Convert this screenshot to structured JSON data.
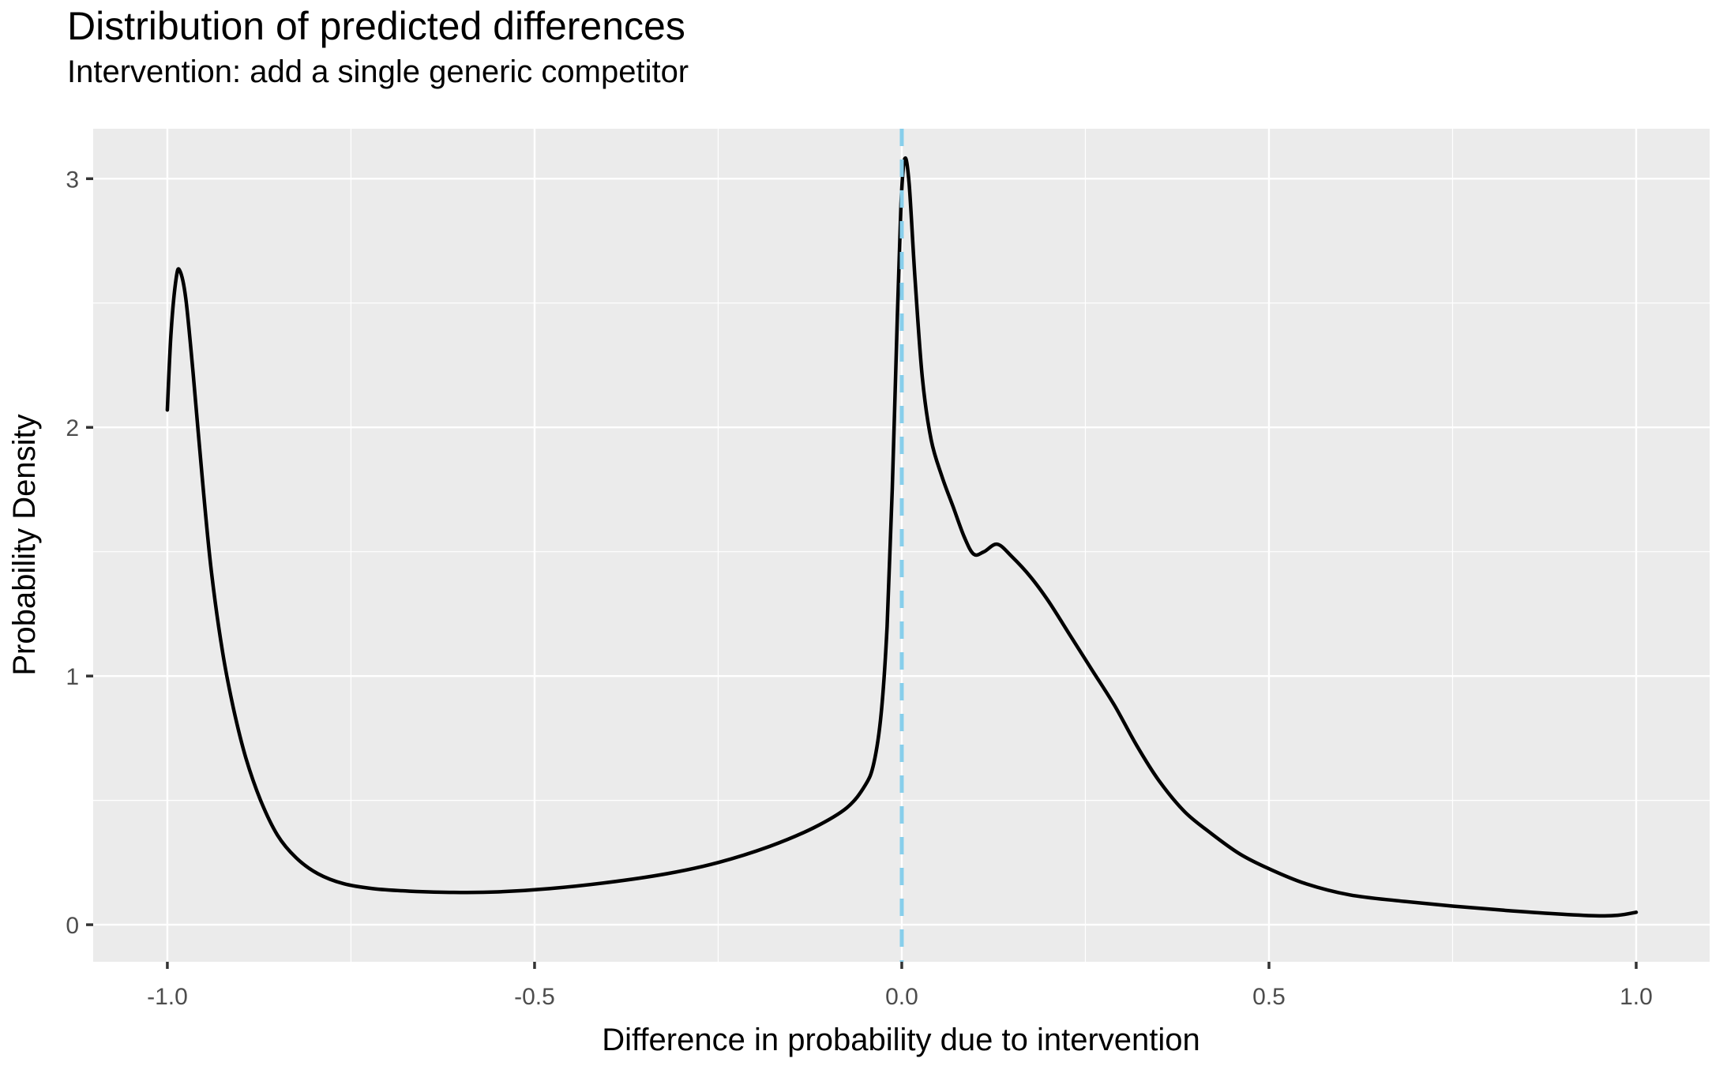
{
  "title": "Distribution of predicted differences",
  "subtitle": "Intervention: add a single generic competitor",
  "colors": {
    "page_bg": "#FFFFFF",
    "panel_bg": "#EBEBEB",
    "grid": "#FFFFFF",
    "curve": "#000000",
    "vline": "#87CEEB",
    "tick_mark": "#333333",
    "tick_label": "#4D4D4D",
    "text": "#000000"
  },
  "chart_data": {
    "type": "line",
    "title": "Distribution of predicted differences",
    "subtitle": "Intervention: add a single generic competitor",
    "xlabel": "Difference in probability due to intervention",
    "ylabel": "Probability Density",
    "xlim": [
      -1.101,
      1.1
    ],
    "ylim": [
      -0.149,
      3.201
    ],
    "x_ticks": [
      -1.0,
      -0.5,
      0.0,
      0.5,
      1.0
    ],
    "x_tick_labels": [
      "-1.0",
      "-0.5",
      "0.0",
      "0.5",
      "1.0"
    ],
    "x_minor_breaks": [
      -0.75,
      -0.25,
      0.25,
      0.75
    ],
    "y_ticks": [
      0,
      1,
      2,
      3
    ],
    "y_tick_labels": [
      "0",
      "1",
      "2",
      "3"
    ],
    "y_minor_breaks": [
      0.5,
      1.5,
      2.5
    ],
    "grid": "white major and minor gridlines on gray panel",
    "legend_position": "none",
    "vline": {
      "x": 0.0,
      "style": "dashed",
      "color": "#87CEEB",
      "width": 5,
      "dash": [
        22,
        17
      ]
    },
    "series": [
      {
        "name": "predicted-difference-density",
        "color": "#000000",
        "width": 4.5,
        "points": [
          [
            -1.0,
            2.07
          ],
          [
            -0.995,
            2.38
          ],
          [
            -0.988,
            2.6
          ],
          [
            -0.983,
            2.63
          ],
          [
            -0.975,
            2.52
          ],
          [
            -0.965,
            2.22
          ],
          [
            -0.952,
            1.78
          ],
          [
            -0.94,
            1.42
          ],
          [
            -0.925,
            1.1
          ],
          [
            -0.91,
            0.87
          ],
          [
            -0.893,
            0.67
          ],
          [
            -0.873,
            0.5
          ],
          [
            -0.85,
            0.36
          ],
          [
            -0.825,
            0.27
          ],
          [
            -0.795,
            0.205
          ],
          [
            -0.76,
            0.165
          ],
          [
            -0.72,
            0.145
          ],
          [
            -0.67,
            0.135
          ],
          [
            -0.61,
            0.13
          ],
          [
            -0.55,
            0.132
          ],
          [
            -0.48,
            0.145
          ],
          [
            -0.4,
            0.17
          ],
          [
            -0.32,
            0.205
          ],
          [
            -0.25,
            0.25
          ],
          [
            -0.18,
            0.315
          ],
          [
            -0.12,
            0.39
          ],
          [
            -0.075,
            0.47
          ],
          [
            -0.05,
            0.56
          ],
          [
            -0.038,
            0.65
          ],
          [
            -0.028,
            0.85
          ],
          [
            -0.02,
            1.2
          ],
          [
            -0.013,
            1.75
          ],
          [
            -0.006,
            2.45
          ],
          [
            -0.001,
            2.9
          ],
          [
            0.004,
            3.08
          ],
          [
            0.01,
            2.98
          ],
          [
            0.018,
            2.6
          ],
          [
            0.028,
            2.2
          ],
          [
            0.04,
            1.95
          ],
          [
            0.055,
            1.8
          ],
          [
            0.07,
            1.68
          ],
          [
            0.085,
            1.56
          ],
          [
            0.098,
            1.49
          ],
          [
            0.112,
            1.5
          ],
          [
            0.13,
            1.53
          ],
          [
            0.15,
            1.48
          ],
          [
            0.175,
            1.4
          ],
          [
            0.2,
            1.3
          ],
          [
            0.23,
            1.16
          ],
          [
            0.26,
            1.02
          ],
          [
            0.29,
            0.88
          ],
          [
            0.32,
            0.72
          ],
          [
            0.35,
            0.58
          ],
          [
            0.385,
            0.455
          ],
          [
            0.42,
            0.37
          ],
          [
            0.46,
            0.285
          ],
          [
            0.5,
            0.225
          ],
          [
            0.55,
            0.165
          ],
          [
            0.61,
            0.12
          ],
          [
            0.68,
            0.095
          ],
          [
            0.75,
            0.075
          ],
          [
            0.82,
            0.058
          ],
          [
            0.89,
            0.044
          ],
          [
            0.945,
            0.036
          ],
          [
            0.975,
            0.038
          ],
          [
            1.0,
            0.05
          ]
        ]
      }
    ]
  }
}
